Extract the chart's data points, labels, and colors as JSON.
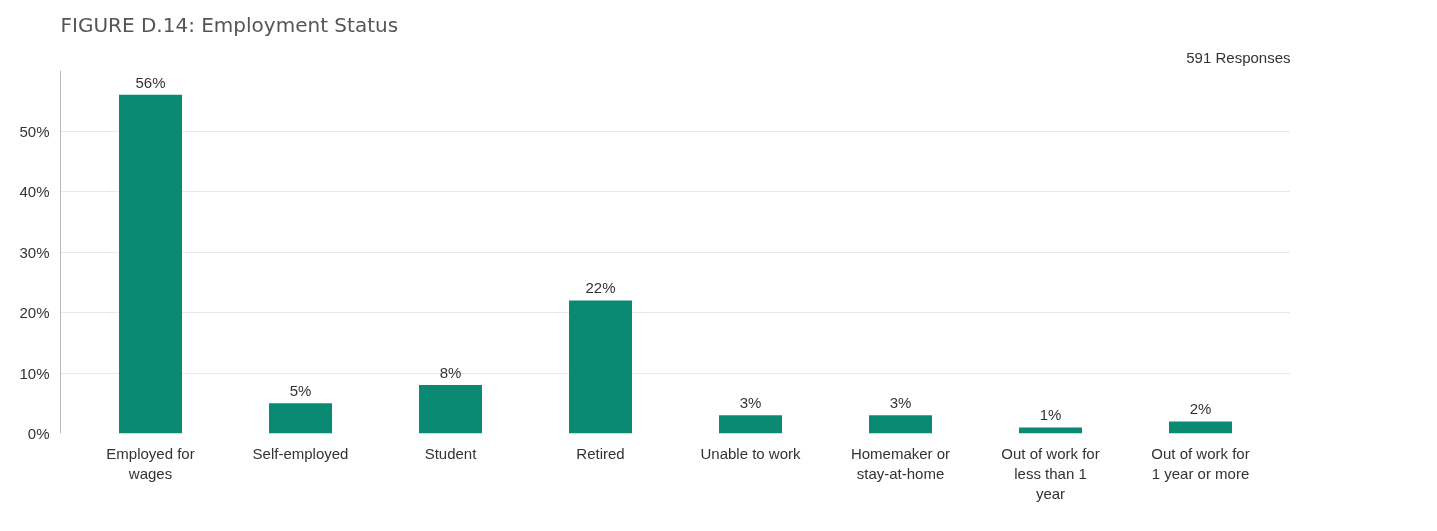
{
  "chart_data": {
    "type": "bar",
    "title": "FIGURE D.14: Employment Status",
    "annotations": [
      "591 Responses"
    ],
    "categories": [
      "Employed for wages",
      "Self-employed",
      "Student",
      "Retired",
      "Unable to work",
      "Homemaker or stay-at-home",
      "Out of work for less than 1 year",
      "Out of work for 1 year or more"
    ],
    "values": [
      56,
      5,
      8,
      22,
      3,
      3,
      1,
      2
    ],
    "color": "#0b8a73",
    "ylim": [
      0,
      60
    ],
    "yticks": [
      {
        "value": 0,
        "label": "0%"
      },
      {
        "value": 10,
        "label": "10%"
      },
      {
        "value": 20,
        "label": "20%"
      },
      {
        "value": 30,
        "label": "30%"
      },
      {
        "value": 40,
        "label": "40%"
      },
      {
        "value": 50,
        "label": "50%"
      }
    ],
    "value_labels": [
      "56%",
      "5%",
      "8%",
      "22%",
      "3%",
      "3%",
      "1%",
      "2%"
    ],
    "grid": "y"
  }
}
